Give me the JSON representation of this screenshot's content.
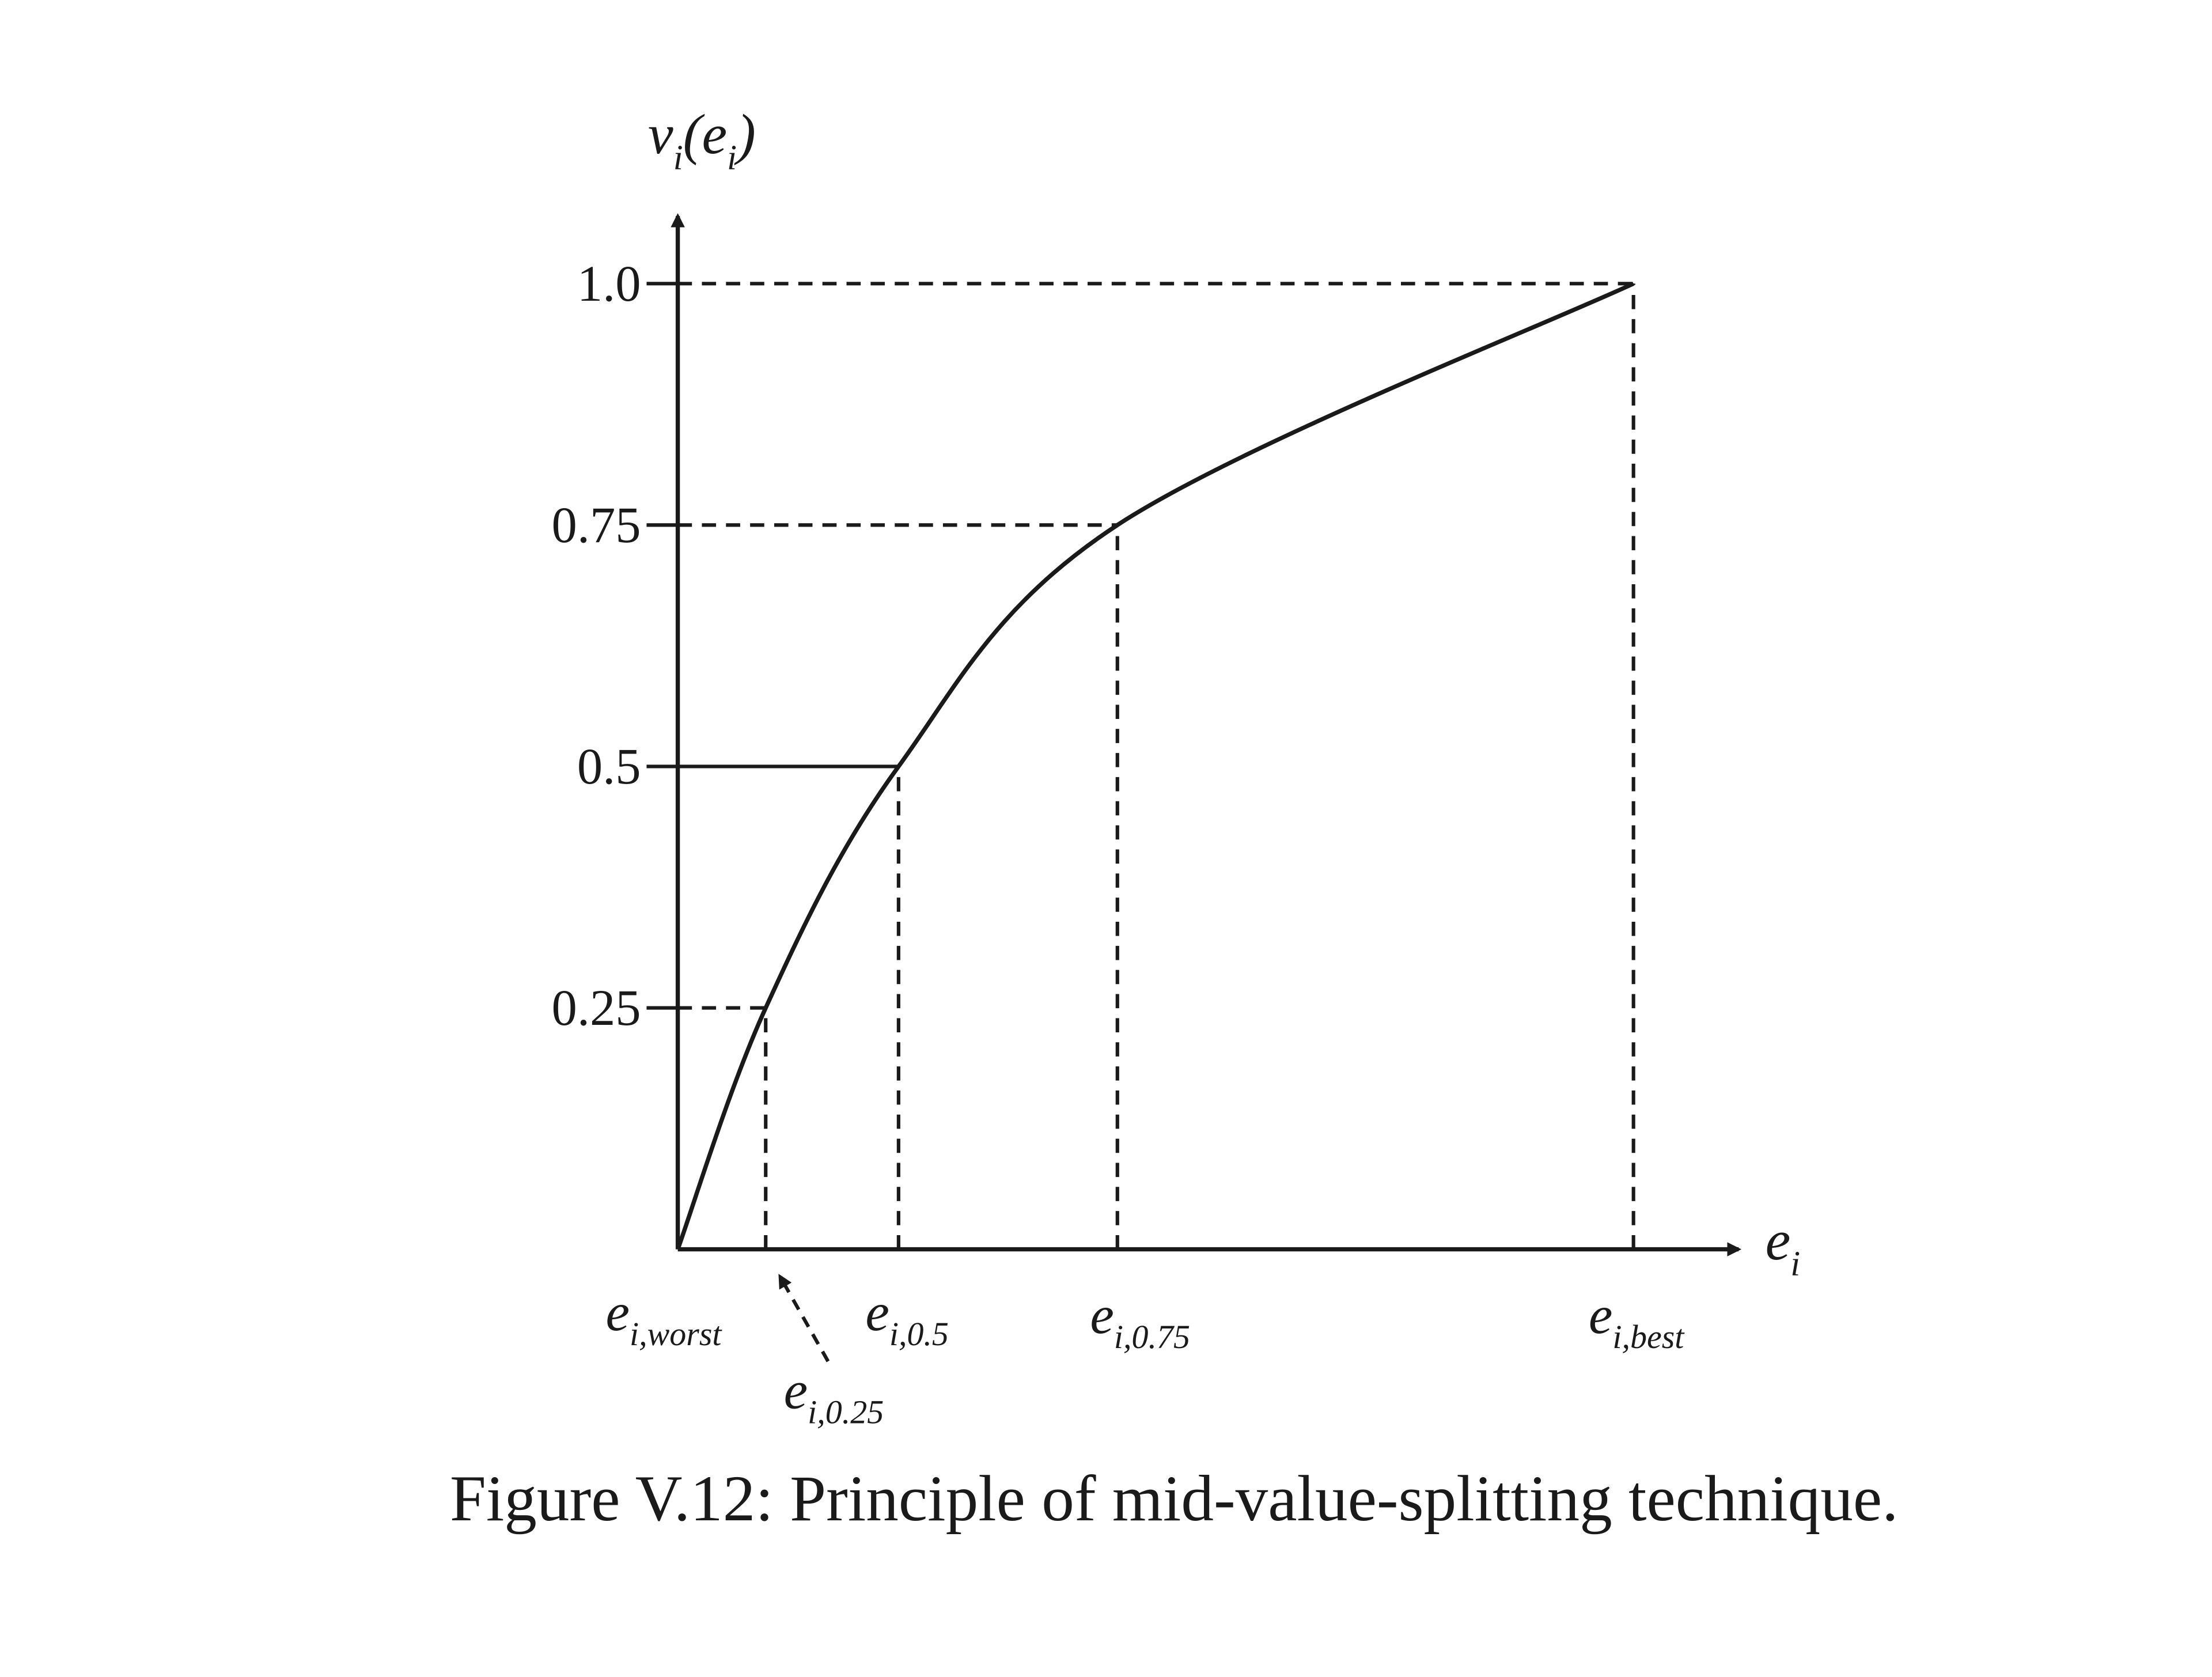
{
  "chart_data": {
    "type": "line",
    "y_label": {
      "parts": [
        "v",
        "i",
        "(e",
        "i",
        ")"
      ]
    },
    "x_label": {
      "parts": [
        "e",
        "i"
      ]
    },
    "x": [
      0,
      0.092,
      0.231,
      0.46,
      1.0
    ],
    "values": [
      0,
      0.25,
      0.5,
      0.75,
      1.0
    ],
    "x_labels": [
      {
        "parts": [
          "e",
          "i,worst"
        ]
      },
      {
        "parts": [
          "e",
          "i,0.25"
        ]
      },
      {
        "parts": [
          "e",
          "i,0.5"
        ]
      },
      {
        "parts": [
          "e",
          "i,0.75"
        ]
      },
      {
        "parts": [
          "e",
          "i,best"
        ]
      }
    ],
    "guide_styles": [
      "none",
      "dashed",
      "solid",
      "dashed",
      "dashed"
    ],
    "xlim": [
      0,
      1.11
    ],
    "ylim": [
      0,
      1.07
    ],
    "yticks": [
      0.25,
      0.5,
      0.75,
      {
        "value": 1,
        "label": "1.0"
      }
    ],
    "color": "#1a1a1a",
    "caption": "Figure V.12: Principle of mid-value-splitting technique."
  }
}
